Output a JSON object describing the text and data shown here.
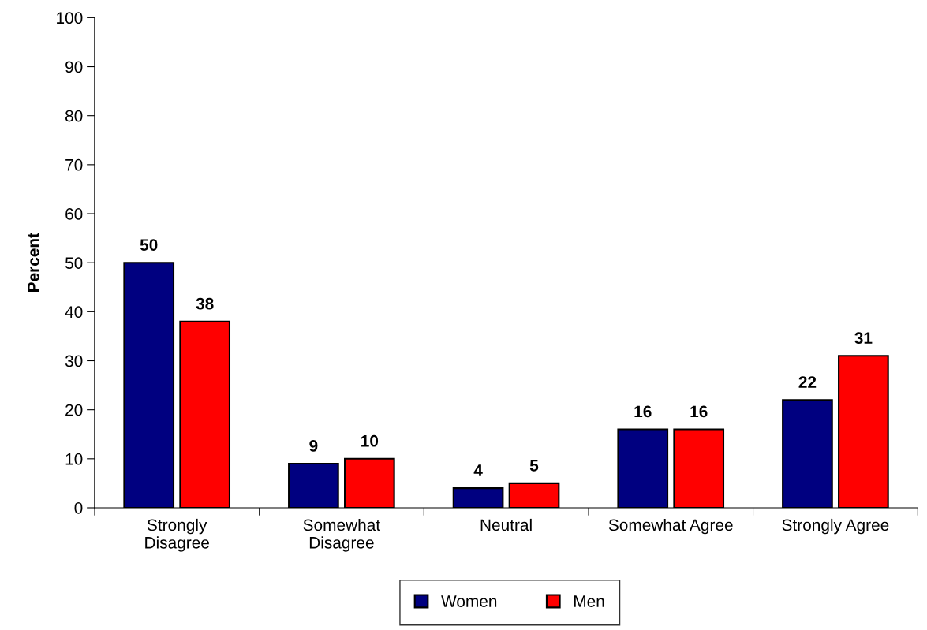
{
  "chart_data": {
    "type": "bar",
    "ylabel": "Percent",
    "categories": [
      "Strongly\nDisagree",
      "Somewhat\nDisagree",
      "Neutral",
      "Somewhat Agree",
      "Strongly Agree"
    ],
    "series": [
      {
        "name": "Women",
        "color": "#000080",
        "values": [
          50,
          9,
          4,
          16,
          22
        ]
      },
      {
        "name": "Men",
        "color": "#ff0000",
        "values": [
          38,
          10,
          5,
          16,
          31
        ]
      }
    ],
    "ylim": [
      0,
      100
    ],
    "yticks": [
      0,
      10,
      20,
      30,
      40,
      50,
      60,
      70,
      80,
      90,
      100
    ],
    "data_labels": true,
    "legend": "bottom",
    "grid": false
  }
}
